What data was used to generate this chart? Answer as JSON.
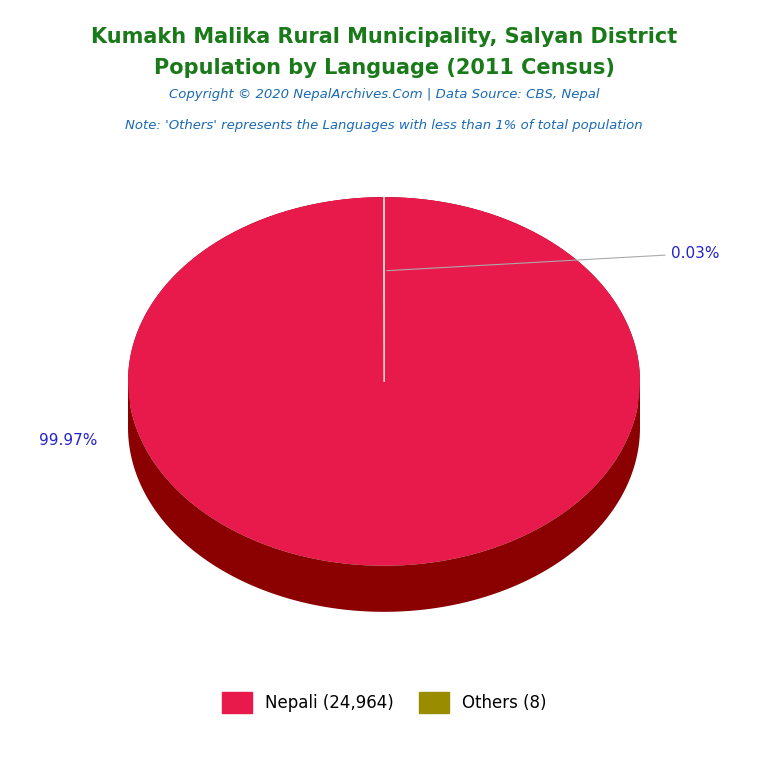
{
  "title_line1": "Kumakh Malika Rural Municipality, Salyan District",
  "title_line2": "Population by Language (2011 Census)",
  "title_color": "#1a7a1a",
  "copyright_text": "Copyright © 2020 NepalArchives.Com | Data Source: CBS, Nepal",
  "copyright_color": "#1a6ab5",
  "note_text": "Note: 'Others' represents the Languages with less than 1% of total population",
  "note_color": "#1a6ab5",
  "labels": [
    "Nepali",
    "Others"
  ],
  "values": [
    24964,
    8
  ],
  "percentages": [
    "99.97%",
    "0.03%"
  ],
  "colors_top": [
    "#e8194b",
    "#9a8c00"
  ],
  "colors_side": [
    "#8b0000",
    "#5a5a00"
  ],
  "legend_labels": [
    "Nepali (24,964)",
    "Others (8)"
  ],
  "label_color": "#2222cc",
  "background_color": "#ffffff",
  "title_fontsize": 15,
  "label_fontsize": 11,
  "legend_fontsize": 12
}
